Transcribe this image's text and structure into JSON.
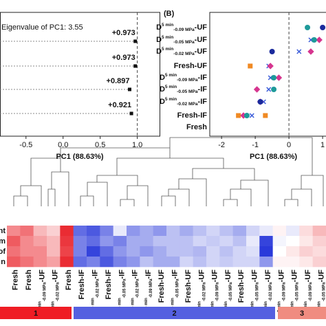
{
  "chart_data": [
    {
      "type": "dot",
      "title": "Eigenvalue of PC1: 3.55",
      "xlabel": "PC1 (88.63%)",
      "categories": [
        null,
        null,
        null,
        null
      ],
      "values": [
        0.973,
        0.973,
        0.897,
        0.921
      ],
      "value_labels": [
        "+0.973",
        "+0.973",
        "+0.897",
        "+0.921"
      ],
      "color": "#111111",
      "xlim": [
        -0.85,
        1.3
      ],
      "xticks": [
        -0.5,
        {
          "value": 0,
          "label": "0.0"
        },
        0.5,
        {
          "value": 1,
          "label": "1.0"
        }
      ],
      "refline": 1
    },
    {
      "type": "dot",
      "panel": "(B)",
      "xlabel": "PC1 (88.63%)",
      "categories": [
        {
          "d": "D",
          "sup": "5 min",
          "sub": "-0.09 MPa",
          "suffix": "-UF"
        },
        {
          "d": "D",
          "sup": "5 min",
          "sub": "-0.05 MPa",
          "suffix": "-UF"
        },
        {
          "d": "D",
          "sup": "5 min",
          "sub": "-0.02 MPa",
          "suffix": "-UF"
        },
        "Fresh-UF",
        {
          "d": "D",
          "sup": "5 min",
          "sub": "-0.09 MPa",
          "suffix": "-IF"
        },
        {
          "d": "D",
          "sup": "5 min",
          "sub": "-0.05 MPa",
          "suffix": "-IF"
        },
        {
          "d": "D",
          "sup": "5 min",
          "sub": "-0.02 MPa",
          "suffix": "-IF"
        },
        "Fresh-IF",
        "Fresh"
      ],
      "series": [
        {
          "color": "#f08a24",
          "marker": "square",
          "values": [
            null,
            null,
            null,
            -1.15,
            null,
            null,
            null,
            -1.5,
            null
          ]
        },
        {
          "color": "#f08a24",
          "marker": "square",
          "values": [
            null,
            null,
            null,
            null,
            null,
            null,
            null,
            -0.7,
            null
          ]
        },
        {
          "color": "#3a5bd9",
          "marker": "cross",
          "values": [
            null,
            0.65,
            0.3,
            -0.6,
            -0.55,
            -0.6,
            -0.75,
            -1.1,
            null
          ]
        },
        {
          "color": "#d6358f",
          "marker": "diamond",
          "values": [
            null,
            0.9,
            0.65,
            -0.55,
            -0.3,
            -0.95,
            -0.85,
            -1.35,
            null
          ]
        },
        {
          "color": "#1f9a9a",
          "marker": "circle",
          "values": [
            0.55,
            0.75,
            null,
            null,
            -0.45,
            -0.45,
            null,
            -1.25,
            null
          ]
        },
        {
          "color": "#1a2a9c",
          "marker": "circle",
          "values": [
            1.0,
            null,
            -0.5,
            null,
            null,
            null,
            -0.85,
            null,
            null
          ]
        }
      ],
      "xlim": [
        -2.35,
        1.1
      ],
      "xticks": [
        -2,
        -1,
        0,
        1
      ],
      "refline": 0
    },
    {
      "type": "heatmap",
      "clim": [
        -1,
        1
      ],
      "rows": [
        "ent",
        "m",
        "of",
        "n"
      ],
      "columns": [
        "Fresh",
        "Fresh",
        {
          "d": "D",
          "sup": "5 min",
          "sub": "-0.09 MPa",
          "suffix": "-UF"
        },
        {
          "d": "D",
          "sup": "5 min",
          "sub": "-0.02 MPa",
          "suffix": "-UF"
        },
        "Fresh",
        "Fresh-IF",
        {
          "d": "D",
          "sup": "5 min",
          "sub": "-0.02 MPa",
          "suffix": "-IF"
        },
        "Fresh-IF",
        {
          "d": "D",
          "sup": "5 min",
          "sub": "-0.05 MPa",
          "suffix": "-IF"
        },
        {
          "d": "D",
          "sup": "5 min",
          "sub": "-0.02 MPa",
          "suffix": "-IF"
        },
        {
          "d": "D",
          "sup": "5 min",
          "sub": "-0.09 MPa",
          "suffix": "-IF"
        },
        "Fresh-UF",
        {
          "d": "D",
          "sup": "5 min",
          "sub": "-0.05 MPa",
          "suffix": "-IF"
        },
        "Fresh-UF",
        {
          "d": "D",
          "sup": "5 min",
          "sub": "-0.02 MPa",
          "suffix": "-UF"
        },
        {
          "d": "D",
          "sup": "5 min",
          "sub": "-0.09 MPa",
          "suffix": "-UF"
        },
        {
          "d": "D",
          "sup": "5 min",
          "sub": "-0.05 MPa",
          "suffix": "-UF"
        },
        "Fresh-UF",
        {
          "d": "D",
          "sup": "5 min",
          "sub": "-0.05 MPa",
          "suffix": "-UF"
        },
        {
          "d": "D",
          "sup": "5 min",
          "sub": "-0.02 MPa",
          "suffix": "-UF"
        },
        {
          "d": "D",
          "sup": "5 min",
          "sub": "-0.09 MPa",
          "suffix": "-UF"
        },
        {
          "d": "D",
          "sup": "5 min",
          "sub": "-0.05 MPa",
          "suffix": "-UF"
        },
        {
          "d": "D",
          "sup": "5 min",
          "sub": "-0.09 MPa",
          "suffix": "-UF"
        },
        {
          "d": "D",
          "sup": "5 min",
          "sub": "-0.05 MPa",
          "suffix": "-UF"
        }
      ],
      "values": [
        [
          0.5,
          0.6,
          0.3,
          0.2,
          0.9,
          -0.7,
          -0.8,
          -0.6,
          -0.1,
          -0.5,
          -0.4,
          -0.5,
          -0.3,
          -0.4,
          -0.3,
          -0.2,
          -0.3,
          -0.4,
          -0.2,
          -0.1,
          0.05,
          -0.1,
          0.15,
          0.3
        ],
        [
          0.7,
          0.5,
          0.4,
          0.3,
          0.85,
          -0.6,
          -0.7,
          -0.5,
          -0.6,
          -0.4,
          -0.4,
          -0.3,
          -0.3,
          -0.3,
          -0.2,
          -0.25,
          -0.2,
          -0.3,
          -0.1,
          -0.9,
          -0.05,
          0,
          0.1,
          0.2
        ],
        [
          0.6,
          0.5,
          0.5,
          0.3,
          0.8,
          -0.6,
          -0.9,
          -0.7,
          -0.5,
          -0.4,
          -0.5,
          -0.4,
          -0.3,
          -0.3,
          -0.35,
          -0.2,
          -0.3,
          -0.2,
          -0.15,
          -0.95,
          0,
          0.1,
          0.2,
          0.15
        ],
        [
          0.7,
          0.6,
          0.5,
          0.4,
          0.9,
          -0.7,
          -0.6,
          -0.8,
          -0.6,
          -0.5,
          -0.3,
          -0.4,
          -0.4,
          -0.2,
          -0.3,
          -0.2,
          -0.25,
          -0.2,
          -0.2,
          -0.5,
          0.05,
          0.05,
          0.1,
          0.2
        ]
      ],
      "clusters": [
        {
          "label": "1",
          "color": "#ef1c24"
        },
        {
          "label": "2",
          "color": "#5560e0"
        },
        {
          "label": "3",
          "color": "#f08c80"
        }
      ]
    }
  ]
}
